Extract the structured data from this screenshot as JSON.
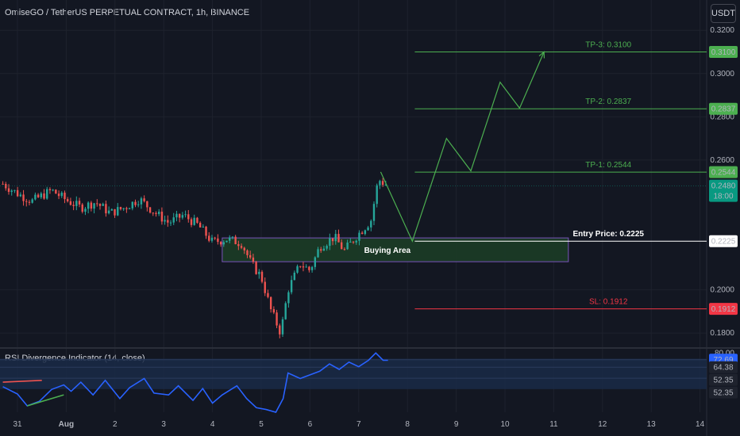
{
  "header": {
    "title": "OmiseGO / TetherUS PERPETUAL CONTRACT, 1h, BINANCE",
    "currency_button": "USDT"
  },
  "rsi_panel": {
    "legend": "RSI Divergence Indicator (14, close)",
    "value_badges": [
      "72.69",
      "64.38",
      "52.35",
      "52.35"
    ],
    "top_tick": "80.00"
  },
  "colors": {
    "background": "#131722",
    "grid": "#1e222d",
    "up_candle": "#26a69a",
    "down_candle": "#ef5350",
    "target_green": "#4caf50",
    "stop_red": "#f23645",
    "entry_white": "#ffffff",
    "buying_area_fill": "#1b3a26",
    "buying_area_border": "#7e57c2",
    "rsi_line": "#2962ff",
    "last_price_badge": "#089981"
  },
  "chart_data": [
    {
      "type": "candlestick",
      "title": "OmiseGO / TetherUS PERPETUAL CONTRACT, 1h, BINANCE",
      "x_tick_labels": [
        "31",
        "Aug",
        "2",
        "3",
        "4",
        "5",
        "6",
        "7",
        "8",
        "9",
        "10",
        "11",
        "12",
        "13",
        "14"
      ],
      "y_tick_labels": [
        "0.3200",
        "0.3000",
        "0.2800",
        "0.2600",
        "0.2000",
        "0.1800"
      ],
      "ylim": [
        0.172,
        0.334
      ],
      "price_path": [
        {
          "day": -0.3,
          "price": 0.249
        },
        {
          "day": 0.0,
          "price": 0.2445
        },
        {
          "day": 0.3,
          "price": 0.241
        },
        {
          "day": 0.7,
          "price": 0.246
        },
        {
          "day": 1.0,
          "price": 0.2415
        },
        {
          "day": 1.3,
          "price": 0.238
        },
        {
          "day": 1.6,
          "price": 0.2405
        },
        {
          "day": 1.9,
          "price": 0.2355
        },
        {
          "day": 2.2,
          "price": 0.238
        },
        {
          "day": 2.5,
          "price": 0.242
        },
        {
          "day": 2.8,
          "price": 0.236
        },
        {
          "day": 3.1,
          "price": 0.231
        },
        {
          "day": 3.4,
          "price": 0.2345
        },
        {
          "day": 3.7,
          "price": 0.23
        },
        {
          "day": 4.0,
          "price": 0.222
        },
        {
          "day": 4.3,
          "price": 0.2235
        },
        {
          "day": 4.6,
          "price": 0.2215
        },
        {
          "day": 4.8,
          "price": 0.212
        },
        {
          "day": 5.0,
          "price": 0.206
        },
        {
          "day": 5.2,
          "price": 0.1905
        },
        {
          "day": 5.4,
          "price": 0.18
        },
        {
          "day": 5.55,
          "price": 0.2
        },
        {
          "day": 5.8,
          "price": 0.212
        },
        {
          "day": 6.0,
          "price": 0.209
        },
        {
          "day": 6.2,
          "price": 0.22
        },
        {
          "day": 6.5,
          "price": 0.2245
        },
        {
          "day": 6.7,
          "price": 0.218
        },
        {
          "day": 7.0,
          "price": 0.226
        },
        {
          "day": 7.25,
          "price": 0.232
        },
        {
          "day": 7.4,
          "price": 0.251
        },
        {
          "day": 7.6,
          "price": 0.248
        }
      ],
      "projection_path": [
        {
          "day": 7.45,
          "price": 0.2545
        },
        {
          "day": 8.1,
          "price": 0.2225
        },
        {
          "day": 8.8,
          "price": 0.27
        },
        {
          "day": 9.3,
          "price": 0.255
        },
        {
          "day": 9.9,
          "price": 0.296
        },
        {
          "day": 10.3,
          "price": 0.284
        },
        {
          "day": 10.8,
          "price": 0.31
        }
      ],
      "levels": [
        {
          "label": "TP-3: 0.3100",
          "badge": "0.3100",
          "price": 0.31,
          "color": "#4caf50"
        },
        {
          "label": "TP-2: 0.2837",
          "badge": "0.2837",
          "price": 0.2837,
          "color": "#4caf50"
        },
        {
          "label": "TP-1: 0.2544",
          "badge": "0.2544",
          "price": 0.2544,
          "color": "#4caf50"
        },
        {
          "label": "Entry Price: 0.2225",
          "badge": "0.2225",
          "price": 0.2225,
          "color": "#ffffff"
        },
        {
          "label": "SL: 0.1912",
          "badge": "0.1912",
          "price": 0.1912,
          "color": "#f23645"
        }
      ],
      "last_price": {
        "value": "0.2480",
        "countdown": "18:00",
        "price": 0.248
      },
      "buying_area": {
        "label": "Buying Area",
        "price_top": 0.224,
        "price_bottom": 0.213,
        "day_start": 4.2,
        "day_end": 11.3
      }
    },
    {
      "type": "line",
      "title": "RSI Divergence Indicator (14, close)",
      "ylim": [
        15,
        82
      ],
      "bands": [
        52.35,
        64.38,
        72.69
      ],
      "series": [
        {
          "name": "RSI",
          "points": [
            {
              "day": -0.3,
              "rsi": 43
            },
            {
              "day": 0.0,
              "rsi": 35
            },
            {
              "day": 0.2,
              "rsi": 22
            },
            {
              "day": 0.45,
              "rsi": 27
            },
            {
              "day": 0.7,
              "rsi": 40
            },
            {
              "day": 0.95,
              "rsi": 45
            },
            {
              "day": 1.1,
              "rsi": 38
            },
            {
              "day": 1.3,
              "rsi": 48
            },
            {
              "day": 1.55,
              "rsi": 34
            },
            {
              "day": 1.8,
              "rsi": 50
            },
            {
              "day": 2.1,
              "rsi": 30
            },
            {
              "day": 2.3,
              "rsi": 42
            },
            {
              "day": 2.6,
              "rsi": 52
            },
            {
              "day": 2.8,
              "rsi": 36
            },
            {
              "day": 3.1,
              "rsi": 34
            },
            {
              "day": 3.3,
              "rsi": 44
            },
            {
              "day": 3.6,
              "rsi": 28
            },
            {
              "day": 3.8,
              "rsi": 41
            },
            {
              "day": 4.0,
              "rsi": 25
            },
            {
              "day": 4.2,
              "rsi": 34
            },
            {
              "day": 4.5,
              "rsi": 44
            },
            {
              "day": 4.7,
              "rsi": 30
            },
            {
              "day": 4.9,
              "rsi": 20
            },
            {
              "day": 5.1,
              "rsi": 18
            },
            {
              "day": 5.3,
              "rsi": 15
            },
            {
              "day": 5.45,
              "rsi": 30
            },
            {
              "day": 5.55,
              "rsi": 58
            },
            {
              "day": 5.8,
              "rsi": 52
            },
            {
              "day": 6.0,
              "rsi": 56
            },
            {
              "day": 6.2,
              "rsi": 60
            },
            {
              "day": 6.4,
              "rsi": 68
            },
            {
              "day": 6.6,
              "rsi": 62
            },
            {
              "day": 6.8,
              "rsi": 70
            },
            {
              "day": 7.0,
              "rsi": 65
            },
            {
              "day": 7.2,
              "rsi": 72
            },
            {
              "day": 7.35,
              "rsi": 80
            },
            {
              "day": 7.5,
              "rsi": 72
            },
            {
              "day": 7.6,
              "rsi": 72
            }
          ]
        }
      ],
      "divergence_lines": [
        {
          "color": "#4caf50",
          "from": {
            "day": 0.2,
            "rsi": 22
          },
          "to": {
            "day": 0.95,
            "rsi": 34
          }
        },
        {
          "color": "#ef5350",
          "from": {
            "day": -0.3,
            "rsi": 48
          },
          "to": {
            "day": 0.5,
            "rsi": 50
          }
        }
      ]
    }
  ]
}
